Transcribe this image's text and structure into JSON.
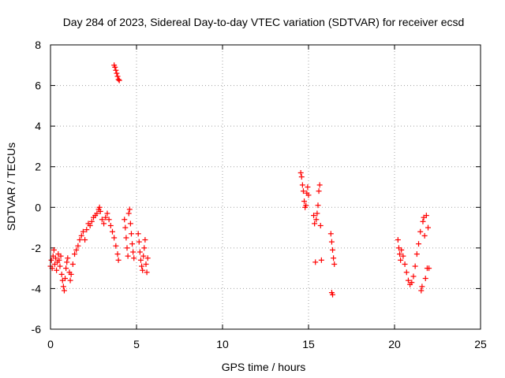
{
  "chart_data": {
    "type": "scatter",
    "title": "Day 284 of 2023, Sidereal Day-to-day VTEC variation (SDTVAR) for receiver ecsd",
    "xlabel": "GPS time / hours",
    "ylabel": "SDTVAR / TECUs",
    "xlim": [
      0,
      25
    ],
    "ylim": [
      -6,
      8
    ],
    "xticks": [
      0,
      5,
      10,
      15,
      20,
      25
    ],
    "yticks": [
      -6,
      -4,
      -2,
      0,
      2,
      4,
      6,
      8
    ],
    "grid": true,
    "marker": "+",
    "series": [
      {
        "name": "SDTVAR",
        "color": "#ff0000",
        "points": [
          [
            0.0,
            -2.9
          ],
          [
            0.05,
            -2.6
          ],
          [
            0.1,
            -3.0
          ],
          [
            0.15,
            -2.4
          ],
          [
            0.2,
            -2.1
          ],
          [
            0.25,
            -2.8
          ],
          [
            0.3,
            -2.5
          ],
          [
            0.35,
            -3.1
          ],
          [
            0.4,
            -2.7
          ],
          [
            0.45,
            -2.3
          ],
          [
            0.5,
            -2.6
          ],
          [
            0.55,
            -2.9
          ],
          [
            0.6,
            -2.4
          ],
          [
            0.65,
            -3.3
          ],
          [
            0.7,
            -3.6
          ],
          [
            0.75,
            -3.9
          ],
          [
            0.8,
            -4.1
          ],
          [
            0.85,
            -3.5
          ],
          [
            0.9,
            -3.0
          ],
          [
            0.95,
            -2.7
          ],
          [
            1.0,
            -2.5
          ],
          [
            1.1,
            -3.2
          ],
          [
            1.15,
            -3.6
          ],
          [
            1.2,
            -3.3
          ],
          [
            1.3,
            -2.8
          ],
          [
            1.4,
            -2.3
          ],
          [
            1.5,
            -2.1
          ],
          [
            1.6,
            -1.9
          ],
          [
            1.7,
            -1.6
          ],
          [
            1.8,
            -1.4
          ],
          [
            1.9,
            -1.2
          ],
          [
            2.0,
            -1.6
          ],
          [
            2.1,
            -1.1
          ],
          [
            2.2,
            -0.8
          ],
          [
            2.3,
            -0.9
          ],
          [
            2.4,
            -0.7
          ],
          [
            2.5,
            -0.5
          ],
          [
            2.6,
            -0.4
          ],
          [
            2.7,
            -0.3
          ],
          [
            2.8,
            -0.1
          ],
          [
            2.85,
            0.0
          ],
          [
            2.9,
            -0.2
          ],
          [
            3.0,
            -0.6
          ],
          [
            3.1,
            -0.8
          ],
          [
            3.2,
            -0.5
          ],
          [
            3.3,
            -0.3
          ],
          [
            3.4,
            -0.6
          ],
          [
            3.5,
            -0.9
          ],
          [
            3.6,
            -1.2
          ],
          [
            3.7,
            -1.5
          ],
          [
            3.8,
            -1.9
          ],
          [
            3.9,
            -2.3
          ],
          [
            3.95,
            -2.6
          ],
          [
            3.7,
            7.0
          ],
          [
            3.75,
            6.9
          ],
          [
            3.8,
            6.75
          ],
          [
            3.85,
            6.6
          ],
          [
            3.9,
            6.45
          ],
          [
            3.95,
            6.3
          ],
          [
            4.0,
            6.25
          ],
          [
            4.3,
            -0.6
          ],
          [
            4.35,
            -1.0
          ],
          [
            4.4,
            -1.5
          ],
          [
            4.45,
            -2.0
          ],
          [
            4.5,
            -2.4
          ],
          [
            4.55,
            -0.3
          ],
          [
            4.6,
            -0.1
          ],
          [
            4.65,
            -0.8
          ],
          [
            4.7,
            -1.3
          ],
          [
            4.75,
            -1.8
          ],
          [
            4.8,
            -2.2
          ],
          [
            4.85,
            -2.5
          ],
          [
            5.1,
            -1.3
          ],
          [
            5.15,
            -1.7
          ],
          [
            5.2,
            -2.2
          ],
          [
            5.25,
            -2.6
          ],
          [
            5.3,
            -2.9
          ],
          [
            5.35,
            -3.1
          ],
          [
            5.4,
            -2.4
          ],
          [
            5.45,
            -2.0
          ],
          [
            5.5,
            -1.6
          ],
          [
            5.55,
            -2.8
          ],
          [
            5.6,
            -3.2
          ],
          [
            5.65,
            -2.5
          ],
          [
            14.55,
            1.7
          ],
          [
            14.6,
            1.5
          ],
          [
            14.65,
            1.1
          ],
          [
            14.7,
            0.8
          ],
          [
            14.75,
            0.3
          ],
          [
            14.8,
            0.0
          ],
          [
            14.85,
            0.1
          ],
          [
            14.9,
            0.7
          ],
          [
            14.95,
            1.0
          ],
          [
            15.0,
            0.6
          ],
          [
            15.3,
            -0.4
          ],
          [
            15.35,
            -0.8
          ],
          [
            15.4,
            -2.7
          ],
          [
            15.45,
            -0.6
          ],
          [
            15.5,
            -0.3
          ],
          [
            15.55,
            0.1
          ],
          [
            15.6,
            0.8
          ],
          [
            15.65,
            1.1
          ],
          [
            15.7,
            -0.9
          ],
          [
            15.75,
            -2.6
          ],
          [
            16.3,
            -1.3
          ],
          [
            16.35,
            -1.7
          ],
          [
            16.4,
            -2.1
          ],
          [
            16.45,
            -2.5
          ],
          [
            16.5,
            -2.8
          ],
          [
            16.35,
            -4.2
          ],
          [
            16.4,
            -4.3
          ],
          [
            20.2,
            -1.6
          ],
          [
            20.25,
            -2.0
          ],
          [
            20.3,
            -2.3
          ],
          [
            20.35,
            -2.6
          ],
          [
            20.4,
            -2.1
          ],
          [
            20.5,
            -2.4
          ],
          [
            20.6,
            -2.8
          ],
          [
            20.7,
            -3.2
          ],
          [
            20.8,
            -3.6
          ],
          [
            20.9,
            -3.8
          ],
          [
            21.0,
            -3.7
          ],
          [
            21.1,
            -3.4
          ],
          [
            21.2,
            -2.9
          ],
          [
            21.3,
            -2.3
          ],
          [
            21.4,
            -1.8
          ],
          [
            21.5,
            -1.2
          ],
          [
            21.55,
            -4.1
          ],
          [
            21.6,
            -3.9
          ],
          [
            21.65,
            -0.7
          ],
          [
            21.7,
            -0.5
          ],
          [
            21.75,
            -1.4
          ],
          [
            21.8,
            -3.5
          ],
          [
            21.85,
            -0.4
          ],
          [
            21.9,
            -3.0
          ],
          [
            21.95,
            -1.0
          ],
          [
            22.0,
            -3.0
          ]
        ]
      }
    ]
  }
}
